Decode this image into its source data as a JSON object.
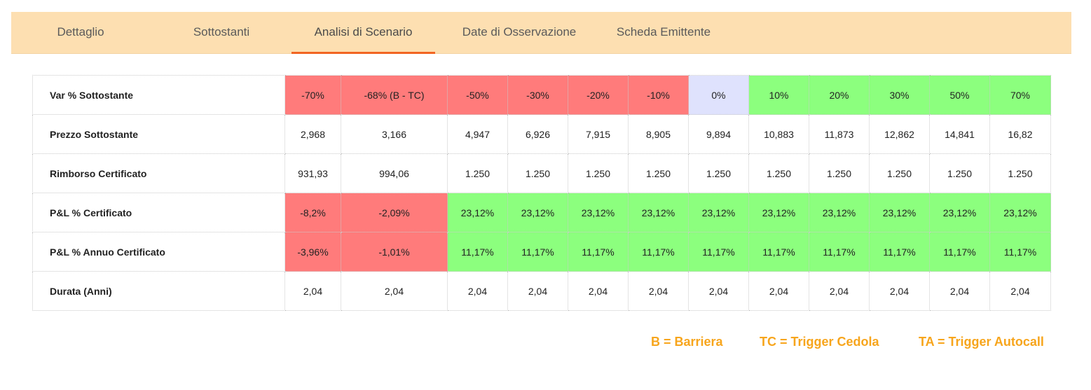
{
  "tabs": [
    {
      "label": "Dettaglio",
      "active": false
    },
    {
      "label": "Sottostanti",
      "active": false
    },
    {
      "label": "Analisi di Scenario",
      "active": true
    },
    {
      "label": "Date di Osservazione",
      "active": false
    },
    {
      "label": "Scheda Emittente",
      "active": false
    }
  ],
  "table": {
    "rows": [
      {
        "label": "Var % Sottostante",
        "cells": [
          "-70%",
          "-68% (B - TC)",
          "-50%",
          "-30%",
          "-20%",
          "-10%",
          "0%",
          "10%",
          "20%",
          "30%",
          "50%",
          "70%"
        ]
      },
      {
        "label": "Prezzo Sottostante",
        "cells": [
          "2,968",
          "3,166",
          "4,947",
          "6,926",
          "7,915",
          "8,905",
          "9,894",
          "10,883",
          "11,873",
          "12,862",
          "14,841",
          "16,82"
        ]
      },
      {
        "label": "Rimborso Certificato",
        "cells": [
          "931,93",
          "994,06",
          "1.250",
          "1.250",
          "1.250",
          "1.250",
          "1.250",
          "1.250",
          "1.250",
          "1.250",
          "1.250",
          "1.250"
        ]
      },
      {
        "label": "P&L % Certificato",
        "cells": [
          "-8,2%",
          "-2,09%",
          "23,12%",
          "23,12%",
          "23,12%",
          "23,12%",
          "23,12%",
          "23,12%",
          "23,12%",
          "23,12%",
          "23,12%",
          "23,12%"
        ]
      },
      {
        "label": "P&L % Annuo Certificato",
        "cells": [
          "-3,96%",
          "-1,01%",
          "11,17%",
          "11,17%",
          "11,17%",
          "11,17%",
          "11,17%",
          "11,17%",
          "11,17%",
          "11,17%",
          "11,17%",
          "11,17%"
        ]
      },
      {
        "label": "Durata (Anni)",
        "cells": [
          "2,04",
          "2,04",
          "2,04",
          "2,04",
          "2,04",
          "2,04",
          "2,04",
          "2,04",
          "2,04",
          "2,04",
          "2,04",
          "2,04"
        ]
      }
    ]
  },
  "legend": {
    "barriera": "B = Barriera",
    "trigger_cedola": "TC = Trigger Cedola",
    "trigger_autocall": "TA = Trigger Autocall"
  },
  "colors": {
    "tab_bar_bg": "#fddfb1",
    "active_underline": "#f26522",
    "negative": "#ff7b7b",
    "zero": "#dfe2fd",
    "positive": "#8cff7e",
    "legend_text": "#f7a51c"
  }
}
